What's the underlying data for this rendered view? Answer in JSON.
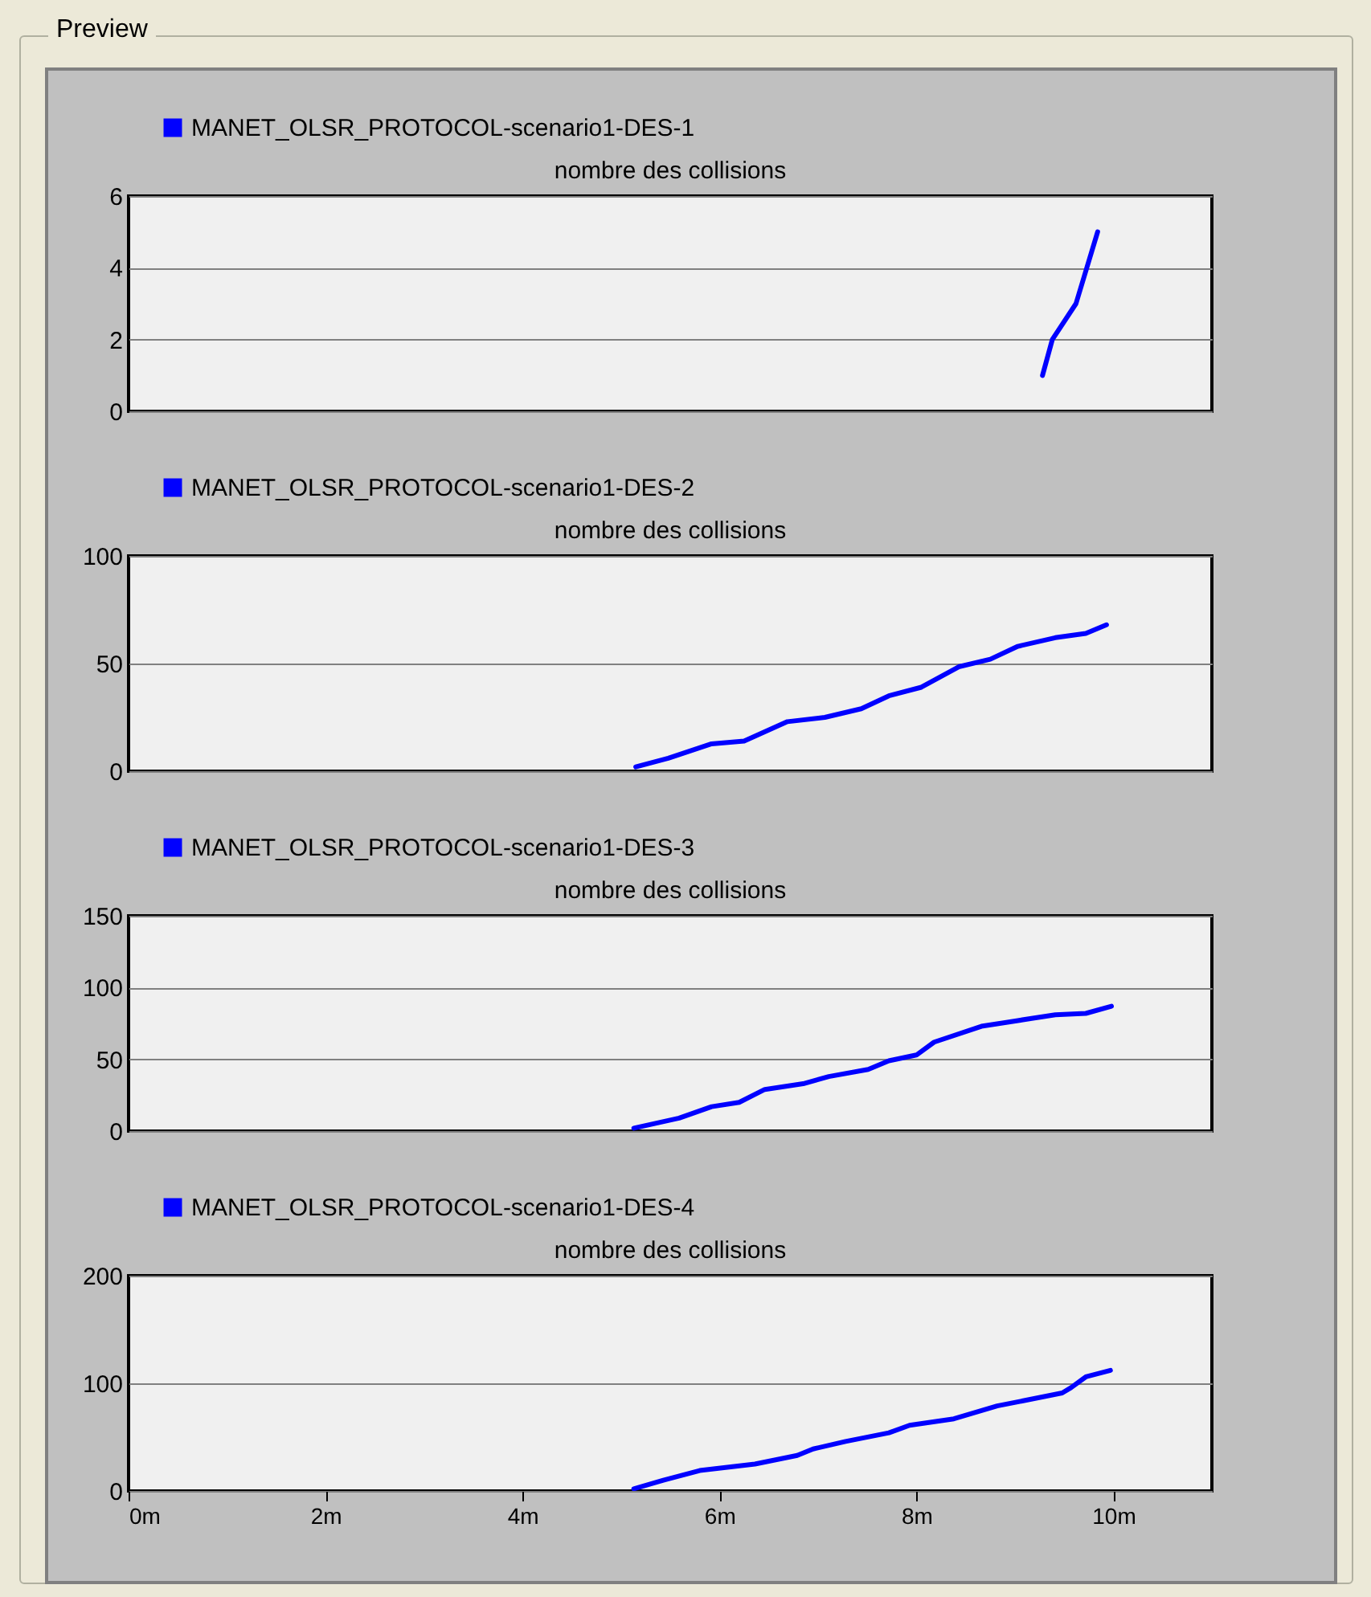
{
  "chart_data": [
    {
      "type": "line",
      "title": "nombre des collisions",
      "annotations": [
        "Preview"
      ],
      "legend": "top left",
      "grid": "y",
      "tick_labels": "y",
      "xlim": [
        0,
        11
      ],
      "ylim": [
        0,
        6
      ],
      "yticks": [
        0,
        2,
        4,
        6
      ],
      "series": [
        {
          "name": "MANET_OLSR_PROTOCOL-scenario1-DES-1",
          "color": "#0000ff",
          "x": [
            9.28,
            9.38,
            9.62,
            9.84
          ],
          "values": [
            1,
            2,
            3,
            5
          ]
        }
      ]
    },
    {
      "type": "line",
      "title": "nombre des collisions",
      "legend": "top left",
      "grid": "y",
      "tick_labels": "y",
      "xlim": [
        0,
        11
      ],
      "ylim": [
        0,
        100
      ],
      "yticks": [
        0,
        50,
        100
      ],
      "series": [
        {
          "name": "MANET_OLSR_PROTOCOL-scenario1-DES-2",
          "color": "#0000ff",
          "x": [
            5.15,
            5.48,
            5.92,
            6.25,
            6.69,
            7.07,
            7.44,
            7.72,
            8.05,
            8.43,
            8.75,
            9.03,
            9.41,
            9.72,
            9.93
          ],
          "values": [
            2,
            6,
            12.7,
            14,
            23,
            25,
            29,
            35,
            39,
            48.5,
            52,
            58,
            62,
            64,
            68
          ]
        }
      ]
    },
    {
      "type": "line",
      "title": "nombre des collisions",
      "legend": "top left",
      "grid": "y",
      "tick_labels": "y",
      "xlim": [
        0,
        11
      ],
      "ylim": [
        0,
        150
      ],
      "yticks": [
        0,
        50,
        100,
        150
      ],
      "series": [
        {
          "name": "MANET_OLSR_PROTOCOL-scenario1-DES-3",
          "color": "#0000ff",
          "x": [
            5.13,
            5.59,
            5.92,
            6.2,
            6.46,
            6.85,
            7.11,
            7.51,
            7.72,
            8.0,
            8.18,
            8.66,
            9.03,
            9.41,
            9.72,
            9.98
          ],
          "values": [
            2,
            9,
            17,
            20,
            29,
            33,
            38,
            43,
            49,
            53,
            62,
            73,
            77,
            81,
            82,
            87
          ]
        }
      ]
    },
    {
      "type": "line",
      "title": "nombre des collisions",
      "legend": "top left",
      "grid": "y",
      "xlim": [
        0,
        11
      ],
      "xticks": [
        {
          "value": 0,
          "label": "0m"
        },
        {
          "value": 2,
          "label": "2m"
        },
        {
          "value": 4,
          "label": "4m"
        },
        {
          "value": 6,
          "label": "6m"
        },
        {
          "value": 8,
          "label": "8m"
        },
        {
          "value": 10,
          "label": "10m"
        }
      ],
      "ylim": [
        0,
        200
      ],
      "yticks": [
        0,
        100,
        200
      ],
      "series": [
        {
          "name": "MANET_OLSR_PROTOCOL-scenario1-DES-4",
          "color": "#0000ff",
          "x": [
            5.13,
            5.43,
            5.8,
            6.36,
            6.79,
            6.95,
            7.28,
            7.72,
            7.93,
            8.38,
            8.82,
            9.48,
            9.57,
            9.72,
            9.97
          ],
          "values": [
            2,
            10,
            19,
            25,
            33,
            39,
            46,
            54,
            61,
            67,
            79,
            91,
            96,
            106,
            112
          ]
        }
      ]
    }
  ]
}
